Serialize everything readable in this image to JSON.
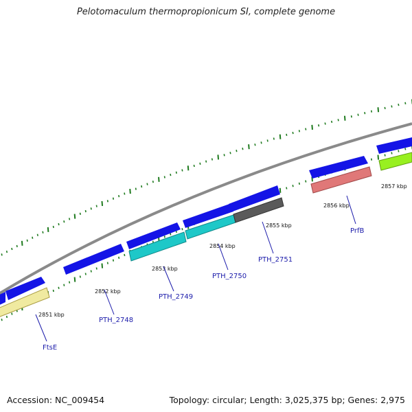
{
  "title": "Pelotomaculum thermopropionicum SI, complete genome",
  "footer": {
    "accession": "Accession: NC_009454",
    "summary": "Topology: circular; Length: 3,025,375 bp; Genes: 2,975"
  },
  "colors": {
    "backbone": "#8a8a8a",
    "forward_gene": "#1414e6",
    "tick": "#1e7a1e",
    "label": "#1a1aaa",
    "cyan": "#1ec8c8",
    "gray": "#5a5a5a",
    "pink": "#e07878",
    "yellow": "#f0eaa0",
    "green": "#98f020"
  },
  "kbp_labels": [
    "2851 kbp",
    "2852 kbp",
    "2853 kbp",
    "2854 kbp",
    "2855 kbp",
    "2856 kbp",
    "2857 kbp"
  ],
  "gene_labels": [
    "FtsE",
    "PTH_2748",
    "PTH_2749",
    "PTH_2750",
    "PTH_2751",
    "PrfB"
  ]
}
